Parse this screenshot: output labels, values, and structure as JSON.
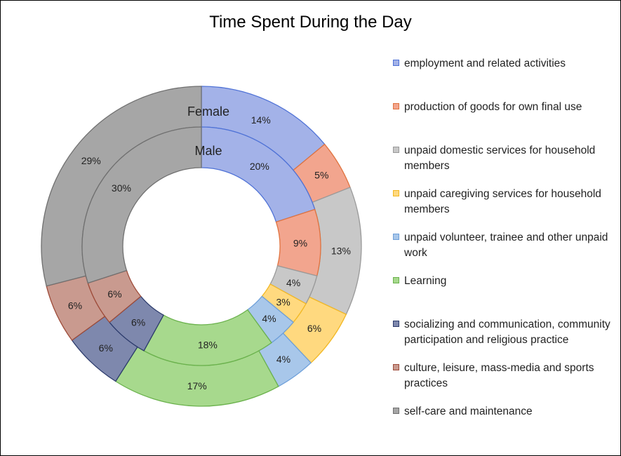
{
  "chart_data": {
    "type": "donut",
    "title": "Time Spent During the Day",
    "categories": [
      "employment and related activities",
      "production of goods for own final use",
      "unpaid domestic services for household members",
      "unpaid caregiving services for household members",
      "unpaid volunteer, trainee and other unpaid work",
      "Learning",
      "socializing and communication, community participation and religious practice",
      "culture, leisure, mass-media and sports practices",
      "self-care and maintenance"
    ],
    "series": [
      {
        "name": "Male",
        "ring": "inner",
        "values": [
          20,
          9,
          4,
          3,
          4,
          18,
          6,
          6,
          30
        ]
      },
      {
        "name": "Female",
        "ring": "outer",
        "values": [
          14,
          5,
          13,
          6,
          4,
          17,
          6,
          6,
          29
        ]
      }
    ],
    "value_suffix": "%",
    "colors": [
      "#a3b2e8",
      "#f2a58e",
      "#c8c8c8",
      "#ffd97f",
      "#a8c7ea",
      "#a7d98d",
      "#7e88ad",
      "#c99a8f",
      "#a6a6a6"
    ],
    "edge_colors": [
      "#4f72d6",
      "#e0733f",
      "#9a9a9a",
      "#f2b824",
      "#6d9fd9",
      "#6bb24d",
      "#2c3b6c",
      "#9e4c3a",
      "#707070"
    ],
    "legend_position": "right"
  }
}
